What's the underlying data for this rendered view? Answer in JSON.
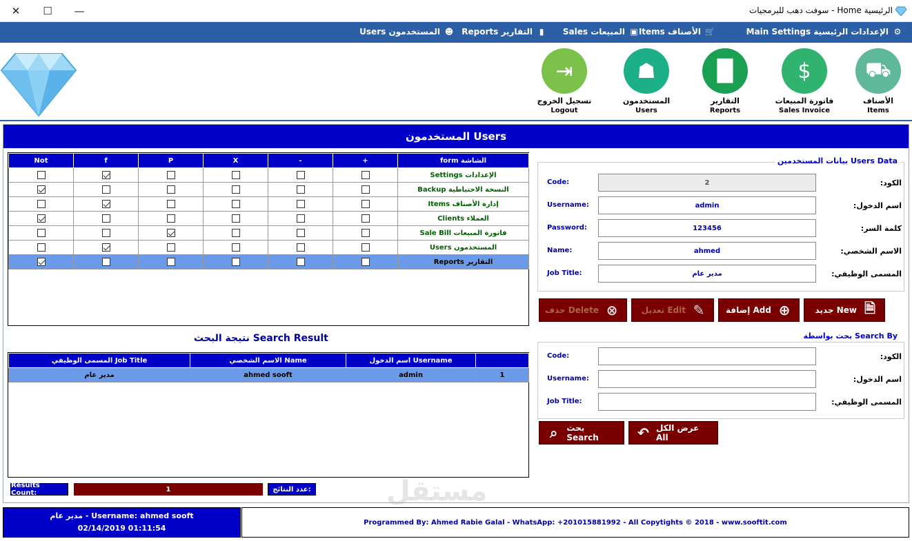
{
  "window": {
    "title": "الرئيسية Home - سوفت دهب للبرمجيات",
    "minimize_glyph": "—",
    "maximize_glyph": "☐",
    "close_glyph": "✕"
  },
  "menu": [
    {
      "label": "الإعدادات الرئيسية Main Settings",
      "icon": "wrench-icon"
    },
    {
      "label": "الأصناف Items",
      "icon": "cart-icon"
    },
    {
      "label": "المبيعات Sales",
      "icon": "box-icon"
    },
    {
      "label": "التقارير Reports",
      "icon": "chart-icon"
    },
    {
      "label": "المستخدمون Users",
      "icon": "users-icon"
    }
  ],
  "toolbar": [
    {
      "ar": "الأصناف",
      "en": "Items",
      "color": "#5fb89a",
      "icon": "handtruck-icon"
    },
    {
      "ar": "فاتورة المبيعات",
      "en": "Sales Invoice",
      "color": "#2fb36f",
      "icon": "dollar-growth-icon"
    },
    {
      "ar": "التقارير",
      "en": "Reports",
      "color": "#1aa052",
      "icon": "bar-chart-icon"
    },
    {
      "ar": "المستخدمون",
      "en": "Users",
      "color": "#1db088",
      "icon": "user-icon"
    },
    {
      "ar": "تسجيل الخروج",
      "en": "Logout",
      "color": "#7cc24a",
      "icon": "logout-icon"
    }
  ],
  "main": {
    "header": "المستخدمون Users"
  },
  "permissions": {
    "headers": [
      "Not",
      "f",
      "P",
      "X",
      "-",
      "+",
      "form الشاشة"
    ],
    "rows": [
      {
        "form": "الإعدادات Settings",
        "checks": [
          false,
          true,
          false,
          false,
          false,
          false
        ],
        "selected": false
      },
      {
        "form": "النسخة الاحتياطية Backup",
        "checks": [
          true,
          false,
          false,
          false,
          false,
          false
        ],
        "selected": false
      },
      {
        "form": "إدارة الأصناف Items",
        "checks": [
          false,
          true,
          false,
          false,
          false,
          false
        ],
        "selected": false
      },
      {
        "form": "العملاء Clients",
        "checks": [
          true,
          false,
          false,
          false,
          false,
          false
        ],
        "selected": false
      },
      {
        "form": "فاتورة المبيعات Sale Bill",
        "checks": [
          false,
          false,
          true,
          false,
          false,
          false
        ],
        "selected": false
      },
      {
        "form": "المستخدمون Users",
        "checks": [
          false,
          true,
          false,
          false,
          false,
          false
        ],
        "selected": false
      },
      {
        "form": "التقارير Reports",
        "checks": [
          true,
          false,
          false,
          false,
          false,
          false
        ],
        "selected": true
      }
    ]
  },
  "user_data": {
    "legend": "بيانات المستخدمين Users Data",
    "fields": [
      {
        "en": "Code:",
        "ar": "الكود:",
        "value": "2"
      },
      {
        "en": "Username:",
        "ar": "اسم الدخول:",
        "value": "admin"
      },
      {
        "en": "Password:",
        "ar": "كلمة السر:",
        "value": "123456"
      },
      {
        "en": "Name:",
        "ar": "الاسم الشخصي:",
        "value": "ahmed"
      },
      {
        "en": "Job Title:",
        "ar": "المسمى الوظيفي:",
        "value": "مدير عام"
      }
    ]
  },
  "actions": {
    "new": "جديد New",
    "add": "إضافة Add",
    "edit": "تعديل Edit",
    "delete": "حذف Delete"
  },
  "search": {
    "legend": "بحث بواسطة Search By",
    "fields": [
      {
        "en": "Code:",
        "ar": "الكود:",
        "value": ""
      },
      {
        "en": "Username:",
        "ar": "اسم الدخول:",
        "value": ""
      },
      {
        "en": "Job Title:",
        "ar": "المسمى الوظيفي:",
        "value": ""
      }
    ],
    "search_button": "بحث Search",
    "show_all_button": "عرض الكل All"
  },
  "results": {
    "title": "نتيجة البحث Search Result",
    "headers": [
      "المسمى الوظيفي Job Title",
      "الاسم الشخصي Name",
      "اسم الدخول Username",
      ""
    ],
    "rows": [
      {
        "job": "مدير عام",
        "name": "ahmed sooft",
        "username": "admin",
        "index": "1"
      }
    ],
    "count_label_en": "Results Count:",
    "count_value": "1",
    "count_label_ar": "عدد النتائج:"
  },
  "status": {
    "user_line": "Username: ahmed sooft - مدير عام",
    "datetime": "02/14/2019 01:11:54",
    "footer": "Programmed By: Ahmed Rabie Galal - WhatsApp: +201015881992 - All Copytights © 2018 - www.sooftit.com"
  },
  "watermark": "مستقل"
}
